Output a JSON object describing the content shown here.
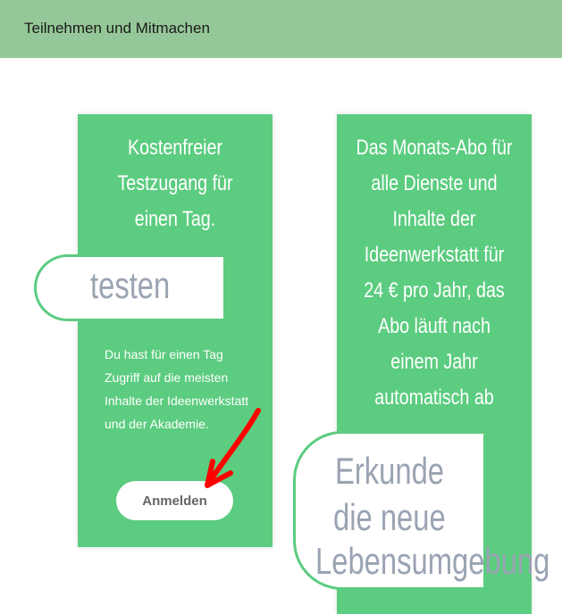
{
  "header": {
    "title": "Teilnehmen und Mitmachen"
  },
  "card1": {
    "title": [
      "Kostenfreier",
      "Testzugang für",
      "einen Tag."
    ],
    "button": "testen",
    "description": "Du hast für einen Tag Zugriff auf die meisten Inhalte der Ideenwerkstatt und der Akademie.",
    "login": "Anmelden"
  },
  "card2": {
    "title": [
      "Das Monats-Abo für",
      "alle Dienste und",
      "Inhalte der",
      "Ideenwerkstatt für",
      "24 € pro Jahr, das",
      "Abo läuft nach",
      "einem Jahr",
      "automatisch ab"
    ],
    "button": [
      "Erkunde",
      "die neue",
      "Lebensumgebung"
    ]
  },
  "colors": {
    "green": "#5ccc80",
    "header": "#95c898",
    "arrow": "#ff0000"
  }
}
